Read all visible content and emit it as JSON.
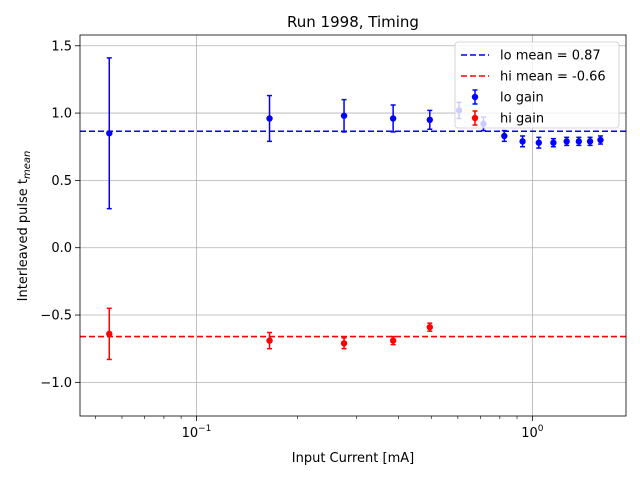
{
  "chart_data": {
    "type": "scatter",
    "title": "Run 1998, Timing",
    "xlabel": "Input Current [mA]",
    "ylabel": "Interleaved pulse t",
    "ylabel_sub": "mean",
    "xscale": "log",
    "xlim": [
      0.045,
      1.9
    ],
    "ylim": [
      -1.25,
      1.58
    ],
    "grid": true,
    "legend_position": "top-right",
    "x_ticks": [
      {
        "value": 0.1,
        "base": "10",
        "exp": "−1"
      },
      {
        "value": 1.0,
        "label": "10",
        "exp": "0"
      }
    ],
    "y_ticks": [
      {
        "value": 1.5,
        "label": "1.5"
      },
      {
        "value": 1.0,
        "label": "1.0"
      },
      {
        "value": 0.5,
        "label": "0.5"
      },
      {
        "value": 0.0,
        "label": "0.0"
      },
      {
        "value": -0.5,
        "label": "−0.5"
      },
      {
        "value": -1.0,
        "label": "−1.0"
      }
    ],
    "mean_lines": [
      {
        "name": "lo mean = 0.87",
        "value": 0.865,
        "color": "#0000ff"
      },
      {
        "name": "hi mean = -0.66",
        "value": -0.66,
        "color": "#ff0000"
      }
    ],
    "series": [
      {
        "name": "lo gain",
        "color": "#0000ff",
        "x": [
          0.055,
          0.165,
          0.275,
          0.385,
          0.495,
          0.605,
          0.715,
          0.825,
          0.935,
          1.045,
          1.155,
          1.265,
          1.375,
          1.485,
          1.595
        ],
        "y": [
          0.85,
          0.96,
          0.98,
          0.96,
          0.95,
          1.02,
          0.92,
          0.83,
          0.79,
          0.78,
          0.78,
          0.79,
          0.79,
          0.79,
          0.8
        ],
        "err": [
          0.56,
          0.17,
          0.12,
          0.1,
          0.07,
          0.06,
          0.05,
          0.04,
          0.04,
          0.04,
          0.03,
          0.03,
          0.03,
          0.03,
          0.03
        ]
      },
      {
        "name": "hi gain",
        "color": "#ff0000",
        "x": [
          0.055,
          0.165,
          0.275,
          0.385,
          0.495
        ],
        "y": [
          -0.64,
          -0.69,
          -0.71,
          -0.69,
          -0.59
        ],
        "err": [
          0.19,
          0.06,
          0.04,
          0.03,
          0.03
        ]
      }
    ]
  }
}
